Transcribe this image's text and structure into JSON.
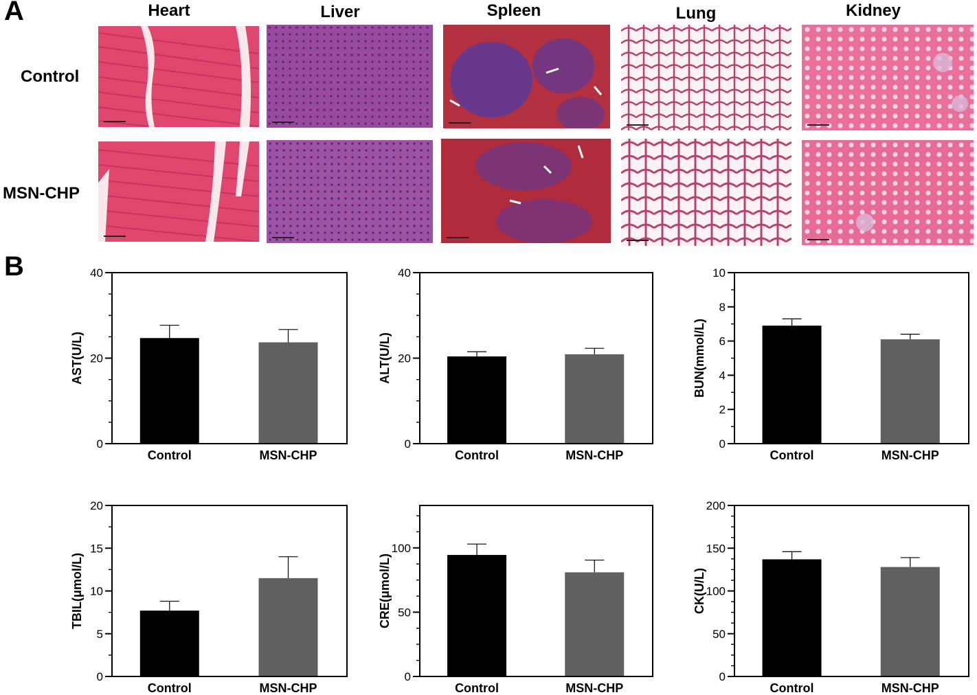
{
  "panel_a": {
    "letter": "A",
    "organs": [
      "Heart",
      "Liver",
      "Spleen",
      "Lung",
      "Kidney"
    ],
    "groups": [
      "Control",
      "MSN-CHP"
    ]
  },
  "panel_b": {
    "letter": "B"
  },
  "colors": {
    "control": "#000000",
    "msn_chp": "#606060",
    "axis": "#000000"
  },
  "chart_data": [
    {
      "type": "bar",
      "ylabel": "AST(U/L)",
      "categories": [
        "Control",
        "MSN-CHP"
      ],
      "values": [
        24.7,
        23.7
      ],
      "errors": [
        3.0,
        3.0
      ],
      "ylim": [
        0,
        40
      ],
      "yticks": [
        0,
        20,
        40
      ],
      "minor_step": 5,
      "grid": false
    },
    {
      "type": "bar",
      "ylabel": "ALT(U/L)",
      "categories": [
        "Control",
        "MSN-CHP"
      ],
      "values": [
        20.4,
        20.9
      ],
      "errors": [
        1.1,
        1.4
      ],
      "ylim": [
        0,
        40
      ],
      "yticks": [
        0,
        20,
        40
      ],
      "minor_step": 5,
      "grid": false
    },
    {
      "type": "bar",
      "ylabel": "BUN(mmol/L)",
      "categories": [
        "Control",
        "MSN-CHP"
      ],
      "values": [
        6.9,
        6.1
      ],
      "errors": [
        0.4,
        0.3
      ],
      "ylim": [
        0,
        10
      ],
      "yticks": [
        0,
        2,
        4,
        6,
        8,
        10
      ],
      "minor_step": 1,
      "grid": false
    },
    {
      "type": "bar",
      "ylabel": "TBIL(μmol/L)",
      "categories": [
        "Control",
        "MSN-CHP"
      ],
      "values": [
        7.7,
        11.5
      ],
      "errors": [
        1.1,
        2.5
      ],
      "ylim": [
        0,
        20
      ],
      "yticks": [
        0,
        5,
        10,
        15,
        20
      ],
      "minor_step": 2.5,
      "grid": false
    },
    {
      "type": "bar",
      "ylabel": "CRE(μmol/L)",
      "categories": [
        "Control",
        "MSN-CHP"
      ],
      "values": [
        94.5,
        81
      ],
      "errors": [
        8.5,
        9.5
      ],
      "ylim": [
        0,
        133
      ],
      "yticks": [
        0,
        50,
        100
      ],
      "minor_step": 12.5,
      "grid": false
    },
    {
      "type": "bar",
      "ylabel": "CK(U/L)",
      "categories": [
        "Control",
        "MSN-CHP"
      ],
      "values": [
        137,
        128
      ],
      "errors": [
        9,
        11
      ],
      "ylim": [
        0,
        200
      ],
      "yticks": [
        0,
        50,
        100,
        150,
        200
      ],
      "minor_step": 12.5,
      "grid": false
    }
  ]
}
